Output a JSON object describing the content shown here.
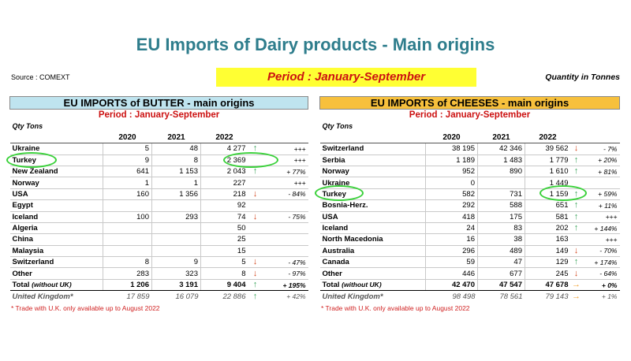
{
  "title": "EU Imports of Dairy products - Main origins",
  "source": "Source : COMEXT",
  "period": "Period : January-September",
  "quantity_note": "Quantity in Tonnes",
  "colors": {
    "title": "#2e7d8c",
    "period_box": "#ffff33",
    "period_text": "#cc1111",
    "butter_header": "#bfe4ef",
    "cheese_header": "#f7c03c",
    "highlight": "#3bd13b"
  },
  "butter": {
    "header": "EU IMPORTS of BUTTER - main origins",
    "period": "Period : January-September",
    "qty_label": "Qty Tons",
    "years": [
      "2020",
      "2021",
      "2022"
    ],
    "rows": [
      {
        "country": "Ukraine",
        "y2020": "5",
        "y2021": "48",
        "y2022": "4 277",
        "arrow": "up",
        "pct": "+++"
      },
      {
        "country": "Turkey",
        "y2020": "9",
        "y2021": "8",
        "y2022": "2 369",
        "arrow": "",
        "pct": "+++"
      },
      {
        "country": "New Zealand",
        "y2020": "641",
        "y2021": "1 153",
        "y2022": "2 043",
        "arrow": "up",
        "pct": "+ 77%"
      },
      {
        "country": "Norway",
        "y2020": "1",
        "y2021": "1",
        "y2022": "227",
        "arrow": "",
        "pct": "+++"
      },
      {
        "country": "USA",
        "y2020": "160",
        "y2021": "1 356",
        "y2022": "218",
        "arrow": "down",
        "pct": "- 84%"
      },
      {
        "country": "Egypt",
        "y2020": "",
        "y2021": "",
        "y2022": "92",
        "arrow": "",
        "pct": ""
      },
      {
        "country": "Iceland",
        "y2020": "100",
        "y2021": "293",
        "y2022": "74",
        "arrow": "down",
        "pct": "- 75%"
      },
      {
        "country": "Algeria",
        "y2020": "",
        "y2021": "",
        "y2022": "50",
        "arrow": "",
        "pct": ""
      },
      {
        "country": "China",
        "y2020": "",
        "y2021": "",
        "y2022": "25",
        "arrow": "",
        "pct": ""
      },
      {
        "country": "Malaysia",
        "y2020": "",
        "y2021": "",
        "y2022": "15",
        "arrow": "",
        "pct": ""
      },
      {
        "country": "Switzerland",
        "y2020": "8",
        "y2021": "9",
        "y2022": "5",
        "arrow": "down",
        "pct": "- 47%"
      },
      {
        "country": "Other",
        "y2020": "283",
        "y2021": "323",
        "y2022": "8",
        "arrow": "down",
        "pct": "- 97%"
      }
    ],
    "total": {
      "label": "Total",
      "label_note": "(without UK)",
      "y2020": "1 206",
      "y2021": "3 191",
      "y2022": "9 404",
      "arrow": "up",
      "pct": "+ 195%"
    },
    "uk": {
      "label": "United Kingdom*",
      "y2020": "17 859",
      "y2021": "16 079",
      "y2022": "22 886",
      "arrow": "up",
      "pct": "+ 42%"
    },
    "footnote": "* Trade with U.K. only available up to August 2022"
  },
  "cheese": {
    "header": "EU IMPORTS of CHEESES - main origins",
    "period": "Period : January-September",
    "qty_label": "Qty Tons",
    "years": [
      "2020",
      "2021",
      "2022"
    ],
    "rows": [
      {
        "country": "Switzerland",
        "y2020": "38 195",
        "y2021": "42 346",
        "y2022": "39 562",
        "arrow": "down",
        "pct": "- 7%"
      },
      {
        "country": "Serbia",
        "y2020": "1 189",
        "y2021": "1 483",
        "y2022": "1 779",
        "arrow": "up",
        "pct": "+ 20%"
      },
      {
        "country": "Norway",
        "y2020": "952",
        "y2021": "890",
        "y2022": "1 610",
        "arrow": "up",
        "pct": "+ 81%"
      },
      {
        "country": "Ukraine",
        "y2020": "0",
        "y2021": "",
        "y2022": "1 449",
        "arrow": "",
        "pct": ""
      },
      {
        "country": "Turkey",
        "y2020": "582",
        "y2021": "731",
        "y2022": "1 159",
        "arrow": "up",
        "pct": "+ 59%"
      },
      {
        "country": "Bosnia-Herz.",
        "y2020": "292",
        "y2021": "588",
        "y2022": "651",
        "arrow": "up",
        "pct": "+ 11%"
      },
      {
        "country": "USA",
        "y2020": "418",
        "y2021": "175",
        "y2022": "581",
        "arrow": "up",
        "pct": "+++"
      },
      {
        "country": "Iceland",
        "y2020": "24",
        "y2021": "83",
        "y2022": "202",
        "arrow": "up",
        "pct": "+ 144%"
      },
      {
        "country": "North Macedonia",
        "y2020": "16",
        "y2021": "38",
        "y2022": "163",
        "arrow": "",
        "pct": "+++"
      },
      {
        "country": "Australia",
        "y2020": "296",
        "y2021": "489",
        "y2022": "149",
        "arrow": "down",
        "pct": "- 70%"
      },
      {
        "country": "Canada",
        "y2020": "59",
        "y2021": "47",
        "y2022": "129",
        "arrow": "up",
        "pct": "+ 174%"
      },
      {
        "country": "Other",
        "y2020": "446",
        "y2021": "677",
        "y2022": "245",
        "arrow": "down",
        "pct": "- 64%"
      }
    ],
    "total": {
      "label": "Total",
      "label_note": "(without UK)",
      "y2020": "42 470",
      "y2021": "47 547",
      "y2022": "47 678",
      "arrow": "side",
      "pct": "+ 0%"
    },
    "uk": {
      "label": "United Kingdom*",
      "y2020": "98 498",
      "y2021": "78 561",
      "y2022": "79 143",
      "arrow": "side",
      "pct": "+ 1%"
    },
    "footnote": "* Trade with U.K. only available up to August 2022"
  }
}
